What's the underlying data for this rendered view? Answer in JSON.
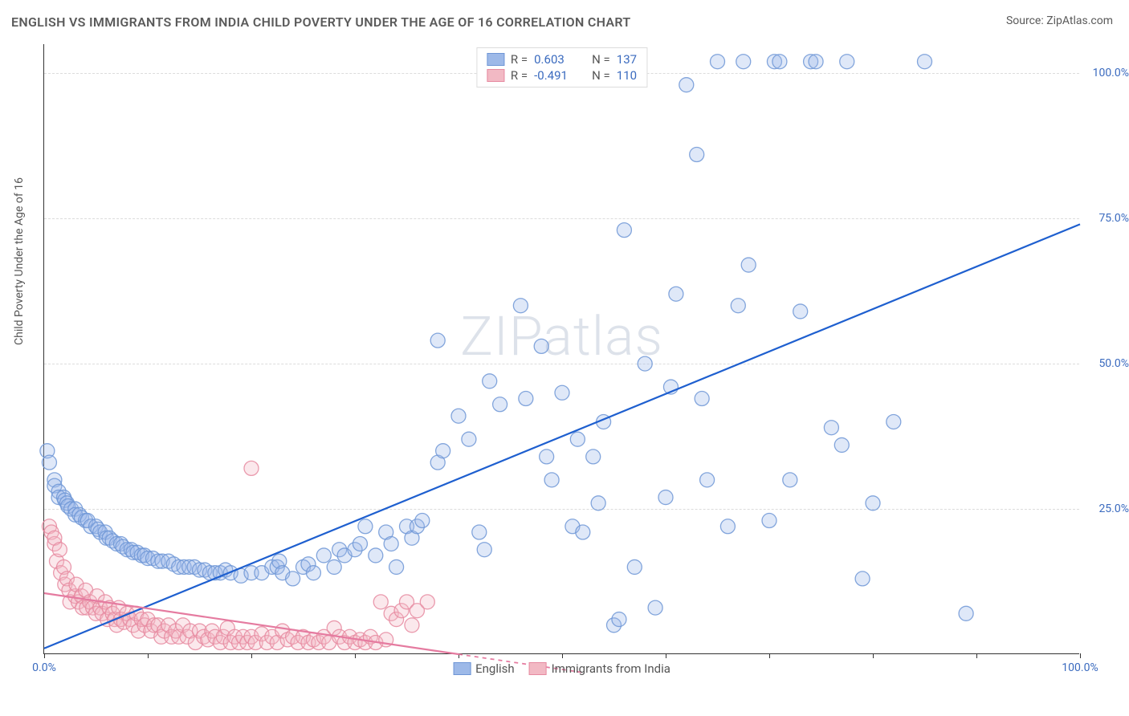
{
  "title": "ENGLISH VS IMMIGRANTS FROM INDIA CHILD POVERTY UNDER THE AGE OF 16 CORRELATION CHART",
  "source_label": "Source:",
  "source_value": "ZipAtlas.com",
  "y_axis_label": "Child Poverty Under the Age of 16",
  "watermark": "ZIPatlas",
  "chart": {
    "type": "scatter",
    "background_color": "#ffffff",
    "grid_color": "#dcdcdc",
    "axis_color": "#333333",
    "tick_label_color": "#3b6bbf",
    "xlim": [
      0,
      100
    ],
    "ylim": [
      0,
      105
    ],
    "y_ticks": [
      25,
      50,
      75,
      100
    ],
    "y_tick_labels": [
      "25.0%",
      "50.0%",
      "75.0%",
      "100.0%"
    ],
    "x_ticks": [
      0,
      10,
      20,
      30,
      40,
      50,
      60,
      70,
      80,
      90,
      100
    ],
    "x_tick_labels_shown": {
      "0": "0.0%",
      "100": "100.0%"
    },
    "marker_radius": 9,
    "marker_fill_opacity": 0.32,
    "marker_stroke_opacity": 0.85,
    "line_width": 2.2,
    "series": [
      {
        "name": "English",
        "color_fill": "#9db9e8",
        "color_stroke": "#6f96d6",
        "line_color": "#1e5fcf",
        "R": "0.603",
        "N": "137",
        "trend": {
          "x1": 0,
          "y1": 1,
          "x2": 100,
          "y2": 74
        },
        "points": [
          [
            0.3,
            35
          ],
          [
            0.5,
            33
          ],
          [
            1,
            30
          ],
          [
            1,
            29
          ],
          [
            1.4,
            28
          ],
          [
            1.4,
            27
          ],
          [
            1.9,
            27
          ],
          [
            2,
            26.5
          ],
          [
            2.2,
            26
          ],
          [
            2.3,
            25.5
          ],
          [
            2.6,
            25
          ],
          [
            3,
            25
          ],
          [
            3,
            24
          ],
          [
            3.4,
            24
          ],
          [
            3.6,
            23.5
          ],
          [
            4,
            23
          ],
          [
            4.2,
            23
          ],
          [
            4.5,
            22
          ],
          [
            5,
            22
          ],
          [
            5.2,
            21.5
          ],
          [
            5.4,
            21
          ],
          [
            5.9,
            21
          ],
          [
            6,
            20
          ],
          [
            6.3,
            20
          ],
          [
            6.6,
            19.5
          ],
          [
            7,
            19
          ],
          [
            7.4,
            19
          ],
          [
            7.6,
            18.5
          ],
          [
            8,
            18
          ],
          [
            8.4,
            18
          ],
          [
            8.6,
            17.5
          ],
          [
            9,
            17.5
          ],
          [
            9.4,
            17
          ],
          [
            9.7,
            17
          ],
          [
            10,
            16.5
          ],
          [
            10.5,
            16.5
          ],
          [
            11,
            16
          ],
          [
            11.4,
            16
          ],
          [
            12,
            16
          ],
          [
            12.5,
            15.5
          ],
          [
            13,
            15
          ],
          [
            13.5,
            15
          ],
          [
            14,
            15
          ],
          [
            14.5,
            15
          ],
          [
            15,
            14.5
          ],
          [
            15.5,
            14.5
          ],
          [
            16,
            14
          ],
          [
            16.5,
            14
          ],
          [
            17,
            14
          ],
          [
            17.5,
            14.5
          ],
          [
            18,
            14
          ],
          [
            19,
            13.5
          ],
          [
            20,
            14
          ],
          [
            21,
            14
          ],
          [
            22,
            15
          ],
          [
            22.5,
            15
          ],
          [
            22.7,
            16
          ],
          [
            23,
            14
          ],
          [
            24,
            13
          ],
          [
            25,
            15
          ],
          [
            25.5,
            15.5
          ],
          [
            26,
            14
          ],
          [
            27,
            17
          ],
          [
            28,
            15
          ],
          [
            28.5,
            18
          ],
          [
            29,
            17
          ],
          [
            30,
            18
          ],
          [
            30.5,
            19
          ],
          [
            31,
            22
          ],
          [
            32,
            17
          ],
          [
            33,
            21
          ],
          [
            33.5,
            19
          ],
          [
            34,
            15
          ],
          [
            35,
            22
          ],
          [
            35.5,
            20
          ],
          [
            36,
            22
          ],
          [
            36.5,
            23
          ],
          [
            38,
            33
          ],
          [
            38.5,
            35
          ],
          [
            38,
            54
          ],
          [
            40,
            41
          ],
          [
            41,
            37
          ],
          [
            42,
            21
          ],
          [
            42.5,
            18
          ],
          [
            43,
            47
          ],
          [
            44,
            43
          ],
          [
            46,
            60
          ],
          [
            46.5,
            44
          ],
          [
            48,
            53
          ],
          [
            48.5,
            34
          ],
          [
            49,
            30
          ],
          [
            50,
            45
          ],
          [
            51,
            22
          ],
          [
            51.5,
            37
          ],
          [
            52,
            21
          ],
          [
            53,
            34
          ],
          [
            53.5,
            26
          ],
          [
            54,
            40
          ],
          [
            55,
            5
          ],
          [
            55.5,
            6
          ],
          [
            56,
            73
          ],
          [
            57,
            15
          ],
          [
            58,
            50
          ],
          [
            59,
            8
          ],
          [
            60,
            27
          ],
          [
            60.5,
            46
          ],
          [
            61,
            62
          ],
          [
            62,
            98
          ],
          [
            63,
            86
          ],
          [
            63.5,
            44
          ],
          [
            64,
            30
          ],
          [
            65,
            102
          ],
          [
            66,
            22
          ],
          [
            67,
            60
          ],
          [
            67.5,
            102
          ],
          [
            68,
            67
          ],
          [
            70,
            23
          ],
          [
            70.5,
            102
          ],
          [
            71,
            102
          ],
          [
            72,
            30
          ],
          [
            73,
            59
          ],
          [
            74,
            102
          ],
          [
            74.5,
            102
          ],
          [
            76,
            39
          ],
          [
            77,
            36
          ],
          [
            77.5,
            102
          ],
          [
            79,
            13
          ],
          [
            80,
            26
          ],
          [
            82,
            40
          ],
          [
            85,
            102
          ],
          [
            89,
            7
          ]
        ]
      },
      {
        "name": "Immigrants from India",
        "color_fill": "#f2b9c4",
        "color_stroke": "#e68aa0",
        "line_color": "#e57ba0",
        "R": "-0.491",
        "N": "110",
        "trend": {
          "x1": 0,
          "y1": 10.5,
          "x2": 40,
          "y2": 0
        },
        "trend_dash_after": 40,
        "trend_dash_end_x": 52,
        "points": [
          [
            0.5,
            22
          ],
          [
            0.7,
            21
          ],
          [
            1,
            19
          ],
          [
            1,
            20
          ],
          [
            1.2,
            16
          ],
          [
            1.5,
            18
          ],
          [
            1.6,
            14
          ],
          [
            1.9,
            15
          ],
          [
            2,
            12
          ],
          [
            2.2,
            13
          ],
          [
            2.4,
            11
          ],
          [
            2.5,
            9
          ],
          [
            3,
            10
          ],
          [
            3.1,
            12
          ],
          [
            3.3,
            9
          ],
          [
            3.6,
            10
          ],
          [
            3.7,
            8
          ],
          [
            4,
            11
          ],
          [
            4.1,
            8
          ],
          [
            4.4,
            9
          ],
          [
            4.7,
            8
          ],
          [
            5,
            7
          ],
          [
            5.1,
            10
          ],
          [
            5.4,
            8
          ],
          [
            5.6,
            7
          ],
          [
            5.9,
            9
          ],
          [
            6.1,
            6
          ],
          [
            6.3,
            8
          ],
          [
            6.6,
            7
          ],
          [
            6.8,
            6
          ],
          [
            7,
            5
          ],
          [
            7.2,
            8
          ],
          [
            7.4,
            6
          ],
          [
            7.7,
            5.5
          ],
          [
            8,
            7
          ],
          [
            8.3,
            6
          ],
          [
            8.6,
            5
          ],
          [
            8.9,
            7
          ],
          [
            9.1,
            4
          ],
          [
            9.4,
            6
          ],
          [
            9.7,
            5
          ],
          [
            10,
            6
          ],
          [
            10.3,
            4
          ],
          [
            10.6,
            5
          ],
          [
            11,
            5
          ],
          [
            11.3,
            3
          ],
          [
            11.6,
            4
          ],
          [
            12,
            5
          ],
          [
            12.3,
            3
          ],
          [
            12.7,
            4
          ],
          [
            13,
            3
          ],
          [
            13.4,
            5
          ],
          [
            13.8,
            3
          ],
          [
            14.1,
            4
          ],
          [
            14.6,
            2
          ],
          [
            15,
            4
          ],
          [
            15.4,
            3
          ],
          [
            15.8,
            2.5
          ],
          [
            16.2,
            4
          ],
          [
            16.5,
            3
          ],
          [
            17,
            2
          ],
          [
            17.3,
            3
          ],
          [
            17.7,
            4.5
          ],
          [
            18,
            2
          ],
          [
            18.4,
            3
          ],
          [
            18.8,
            2
          ],
          [
            19.2,
            3
          ],
          [
            19.6,
            2
          ],
          [
            20,
            3
          ],
          [
            20.4,
            2
          ],
          [
            21,
            3.5
          ],
          [
            21.5,
            2
          ],
          [
            22,
            3
          ],
          [
            22.5,
            2
          ],
          [
            23,
            4
          ],
          [
            23.5,
            2.5
          ],
          [
            24,
            3
          ],
          [
            24.5,
            2
          ],
          [
            25,
            3
          ],
          [
            25.5,
            2
          ],
          [
            26,
            2.5
          ],
          [
            26.5,
            2
          ],
          [
            27,
            3
          ],
          [
            27.5,
            2
          ],
          [
            28,
            4.5
          ],
          [
            28.5,
            3
          ],
          [
            29,
            2
          ],
          [
            29.5,
            3
          ],
          [
            30,
            2
          ],
          [
            30.5,
            2.5
          ],
          [
            31,
            2
          ],
          [
            31.5,
            3
          ],
          [
            32,
            2
          ],
          [
            32.5,
            9
          ],
          [
            33,
            2.5
          ],
          [
            33.5,
            7
          ],
          [
            34,
            6
          ],
          [
            34.5,
            7.5
          ],
          [
            35,
            9
          ],
          [
            35.5,
            5
          ],
          [
            36,
            7.5
          ],
          [
            37,
            9
          ],
          [
            20,
            32
          ]
        ]
      }
    ],
    "legend_bottom": [
      {
        "label": "English",
        "fill": "#9db9e8",
        "stroke": "#6f96d6"
      },
      {
        "label": "Immigrants from India",
        "fill": "#f2b9c4",
        "stroke": "#e68aa0"
      }
    ]
  }
}
